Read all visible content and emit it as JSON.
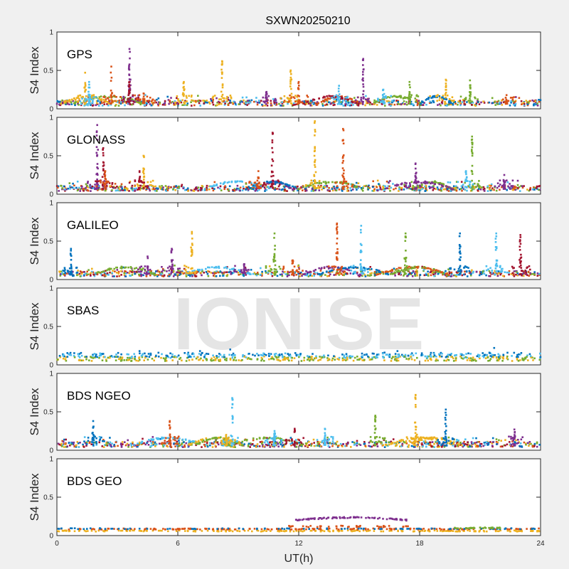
{
  "chart_data": {
    "type": "scatter",
    "title": "SXWN20250210",
    "xlabel": "UT(h)",
    "ylabel": "S4 Index",
    "xlim": [
      0,
      24
    ],
    "ylim": [
      0,
      1
    ],
    "x_ticks": [
      "0",
      "6",
      "12",
      "18",
      "24"
    ],
    "y_ticks": [
      "0",
      "0.5",
      "1"
    ],
    "watermark": "IONISE",
    "colors": [
      "#0072BD",
      "#D95319",
      "#EDB120",
      "#7E2F8E",
      "#77AC30",
      "#4DBEEE",
      "#A2142F"
    ],
    "panels": [
      {
        "label": "GPS",
        "spikes": [
          {
            "x": 1.4,
            "peak": 0.47,
            "color": "#EDB120"
          },
          {
            "x": 1.6,
            "peak": 0.35,
            "color": "#4DBEEE"
          },
          {
            "x": 2.7,
            "peak": 0.55,
            "color": "#D95319"
          },
          {
            "x": 3.6,
            "peak": 0.78,
            "color": "#7E2F8E"
          },
          {
            "x": 3.6,
            "peak": 0.35,
            "color": "#A2142F"
          },
          {
            "x": 4.3,
            "peak": 0.2,
            "color": "#D95319"
          },
          {
            "x": 6.3,
            "peak": 0.35,
            "color": "#EDB120"
          },
          {
            "x": 8.2,
            "peak": 0.62,
            "color": "#EDB120"
          },
          {
            "x": 10.4,
            "peak": 0.22,
            "color": "#7E2F8E"
          },
          {
            "x": 11.6,
            "peak": 0.5,
            "color": "#EDB120"
          },
          {
            "x": 12.0,
            "peak": 0.35,
            "color": "#D95319"
          },
          {
            "x": 14.0,
            "peak": 0.3,
            "color": "#4DBEEE"
          },
          {
            "x": 15.2,
            "peak": 0.65,
            "color": "#7E2F8E"
          },
          {
            "x": 16.2,
            "peak": 0.25,
            "color": "#4DBEEE"
          },
          {
            "x": 17.5,
            "peak": 0.35,
            "color": "#77AC30"
          },
          {
            "x": 19.3,
            "peak": 0.38,
            "color": "#EDB120"
          },
          {
            "x": 20.5,
            "peak": 0.37,
            "color": "#77AC30"
          },
          {
            "x": 22.3,
            "peak": 0.12,
            "color": "#D95319"
          }
        ]
      },
      {
        "label": "GLONASS",
        "spikes": [
          {
            "x": 2.0,
            "peak": 0.9,
            "color": "#7E2F8E"
          },
          {
            "x": 2.3,
            "peak": 0.6,
            "color": "#A2142F"
          },
          {
            "x": 2.4,
            "peak": 0.3,
            "color": "#D95319"
          },
          {
            "x": 4.3,
            "peak": 0.5,
            "color": "#EDB120"
          },
          {
            "x": 4.1,
            "peak": 0.3,
            "color": "#A2142F"
          },
          {
            "x": 10.0,
            "peak": 0.3,
            "color": "#D95319"
          },
          {
            "x": 10.7,
            "peak": 0.8,
            "color": "#A2142F"
          },
          {
            "x": 12.8,
            "peak": 0.95,
            "color": "#EDB120"
          },
          {
            "x": 14.2,
            "peak": 0.85,
            "color": "#D95319"
          },
          {
            "x": 17.8,
            "peak": 0.4,
            "color": "#7E2F8E"
          },
          {
            "x": 20.6,
            "peak": 0.75,
            "color": "#77AC30"
          },
          {
            "x": 20.3,
            "peak": 0.3,
            "color": "#4DBEEE"
          },
          {
            "x": 22.2,
            "peak": 0.25,
            "color": "#7E2F8E"
          }
        ]
      },
      {
        "label": "GALILEO",
        "spikes": [
          {
            "x": 0.7,
            "peak": 0.4,
            "color": "#0072BD"
          },
          {
            "x": 4.5,
            "peak": 0.3,
            "color": "#7E2F8E"
          },
          {
            "x": 5.7,
            "peak": 0.4,
            "color": "#7E2F8E"
          },
          {
            "x": 6.7,
            "peak": 0.62,
            "color": "#EDB120"
          },
          {
            "x": 9.3,
            "peak": 0.2,
            "color": "#7E2F8E"
          },
          {
            "x": 10.8,
            "peak": 0.6,
            "color": "#77AC30"
          },
          {
            "x": 11.7,
            "peak": 0.25,
            "color": "#D95319"
          },
          {
            "x": 13.9,
            "peak": 0.73,
            "color": "#D95319"
          },
          {
            "x": 15.1,
            "peak": 0.7,
            "color": "#4DBEEE"
          },
          {
            "x": 17.3,
            "peak": 0.6,
            "color": "#77AC30"
          },
          {
            "x": 20.0,
            "peak": 0.6,
            "color": "#0072BD"
          },
          {
            "x": 21.8,
            "peak": 0.6,
            "color": "#4DBEEE"
          },
          {
            "x": 23.0,
            "peak": 0.58,
            "color": "#A2142F"
          }
        ]
      },
      {
        "label": "SBAS",
        "spikes": []
      },
      {
        "label": "BDS NGEO",
        "spikes": [
          {
            "x": 1.8,
            "peak": 0.38,
            "color": "#0072BD"
          },
          {
            "x": 5.6,
            "peak": 0.38,
            "color": "#D95319"
          },
          {
            "x": 8.7,
            "peak": 0.68,
            "color": "#4DBEEE"
          },
          {
            "x": 8.4,
            "peak": 0.2,
            "color": "#EDB120"
          },
          {
            "x": 10.8,
            "peak": 0.25,
            "color": "#4DBEEE"
          },
          {
            "x": 11.8,
            "peak": 0.28,
            "color": "#A2142F"
          },
          {
            "x": 13.3,
            "peak": 0.28,
            "color": "#4DBEEE"
          },
          {
            "x": 15.8,
            "peak": 0.45,
            "color": "#77AC30"
          },
          {
            "x": 17.8,
            "peak": 0.72,
            "color": "#EDB120"
          },
          {
            "x": 19.3,
            "peak": 0.53,
            "color": "#0072BD"
          },
          {
            "x": 22.7,
            "peak": 0.27,
            "color": "#7E2F8E"
          }
        ]
      },
      {
        "label": "BDS GEO",
        "spikes": []
      }
    ]
  }
}
